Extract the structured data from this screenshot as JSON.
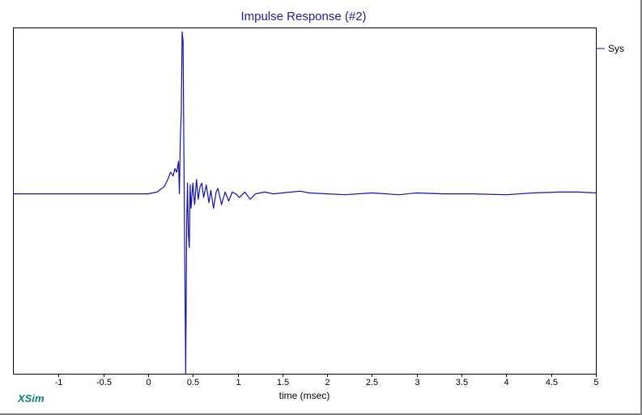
{
  "brand": "XSim",
  "colors": {
    "series": "#1010c0",
    "title": "#1a1aa6",
    "brand": "#0a7f7f",
    "axis": "#000000"
  },
  "chart_data": {
    "type": "line",
    "title": "Impulse Response (#2)",
    "xlabel": "time (msec)",
    "ylabel": "",
    "xlim": [
      -1.5,
      5
    ],
    "ylim": [
      -1.0,
      0.92
    ],
    "grid": false,
    "legend": "top-right",
    "x_ticks": [
      {
        "value": -1,
        "label": "-1"
      },
      {
        "value": -0.5,
        "label": "-0.5"
      },
      {
        "value": 0,
        "label": "0"
      },
      {
        "value": 0.5,
        "label": "0.5"
      },
      {
        "value": 1,
        "label": "1"
      },
      {
        "value": 1.5,
        "label": "1.5"
      },
      {
        "value": 2,
        "label": "2"
      },
      {
        "value": 2.5,
        "label": "2.5"
      },
      {
        "value": 3,
        "label": "3"
      },
      {
        "value": 3.5,
        "label": "3.5"
      },
      {
        "value": 4,
        "label": "4"
      },
      {
        "value": 4.5,
        "label": "4.5"
      },
      {
        "value": 5,
        "label": "5"
      }
    ],
    "series": [
      {
        "name": "Sys",
        "x": [
          -1.5,
          -1.0,
          -0.5,
          0.0,
          0.1,
          0.18,
          0.22,
          0.25,
          0.28,
          0.3,
          0.32,
          0.34,
          0.35,
          0.36,
          0.37,
          0.38,
          0.39,
          0.4,
          0.41,
          0.42,
          0.43,
          0.44,
          0.45,
          0.46,
          0.47,
          0.48,
          0.5,
          0.52,
          0.54,
          0.56,
          0.58,
          0.6,
          0.62,
          0.65,
          0.68,
          0.7,
          0.73,
          0.76,
          0.78,
          0.82,
          0.86,
          0.9,
          0.94,
          0.98,
          1.02,
          1.08,
          1.14,
          1.2,
          1.3,
          1.4,
          1.5,
          1.6,
          1.7,
          1.8,
          2.0,
          2.2,
          2.5,
          2.8,
          3.0,
          3.3,
          3.6,
          4.0,
          4.3,
          4.6,
          4.8,
          5.0
        ],
        "y": [
          0.0,
          0.0,
          0.0,
          0.0,
          0.01,
          0.04,
          0.08,
          0.12,
          0.1,
          0.14,
          0.12,
          0.18,
          0.0,
          0.3,
          0.45,
          0.9,
          0.85,
          0.2,
          -0.4,
          -1.0,
          -0.2,
          0.06,
          -0.22,
          -0.3,
          0.05,
          -0.08,
          0.06,
          -0.06,
          0.08,
          -0.03,
          0.04,
          0.06,
          -0.02,
          0.05,
          -0.05,
          0.02,
          -0.08,
          0.01,
          0.03,
          -0.06,
          0.01,
          -0.04,
          0.01,
          0.0,
          -0.02,
          0.01,
          -0.03,
          0.0,
          0.01,
          0.0,
          0.005,
          0.01,
          0.015,
          0.005,
          0.0,
          -0.005,
          0.005,
          -0.005,
          0.005,
          0.0,
          0.0,
          -0.005,
          0.005,
          0.01,
          0.01,
          0.005
        ]
      }
    ]
  }
}
